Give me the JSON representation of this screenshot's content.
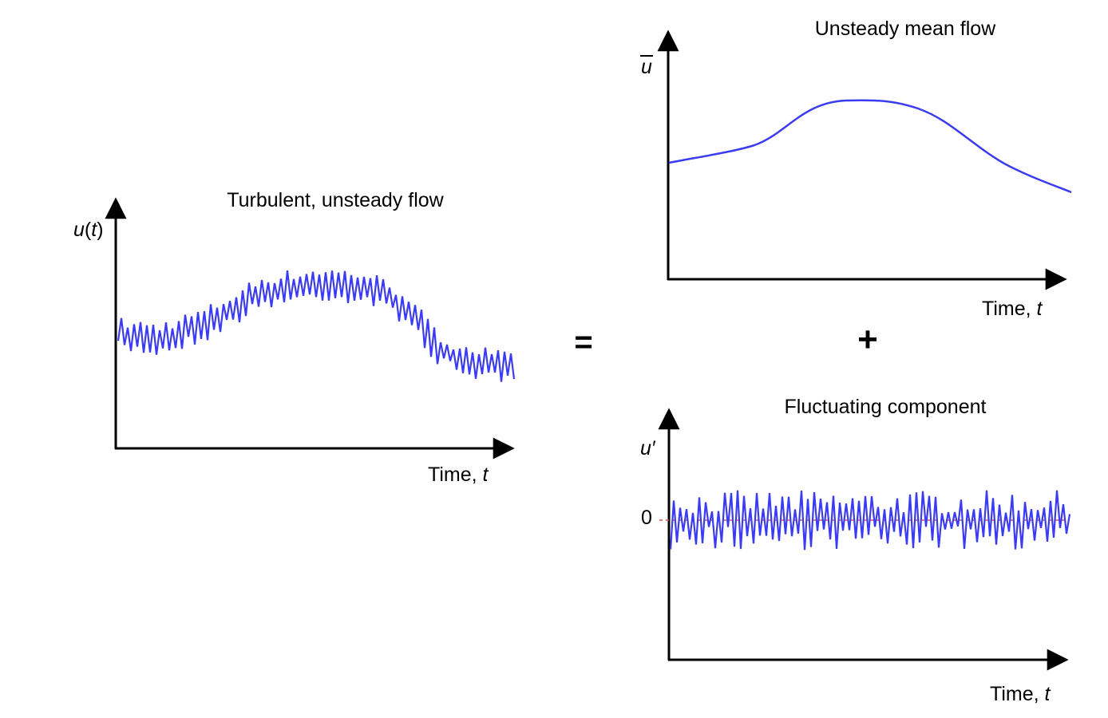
{
  "left": {
    "title": "Turbulent, unsteady flow",
    "ylabel_main": "u",
    "ylabel_open": "(",
    "ylabel_var": "t",
    "ylabel_close": ")",
    "xlabel_prefix": "Time, ",
    "xlabel_var": "t"
  },
  "equals": "=",
  "plus": "+",
  "top_right": {
    "title": "Unsteady mean flow",
    "ylabel": "u",
    "xlabel_prefix": "Time, ",
    "xlabel_var": "t"
  },
  "bottom_right": {
    "title": "Fluctuating component",
    "ylabel": "u′",
    "zero_label": "0",
    "xlabel_prefix": "Time, ",
    "xlabel_var": "t"
  },
  "colors": {
    "signal": "#3b3bf0",
    "axis": "#000000",
    "zero_line": "#d9534f"
  }
}
